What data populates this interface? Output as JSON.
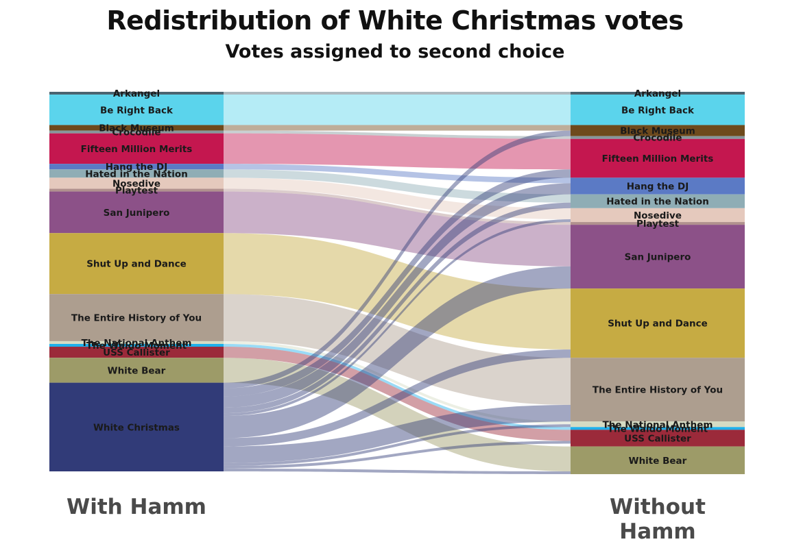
{
  "chart_data": {
    "type": "alluvial",
    "title": "Redistribution of White Christmas votes",
    "subtitle": "Votes assigned to second choice",
    "axes": [
      "With Hamm",
      "Without Hamm"
    ],
    "eliminated": "White Christmas",
    "categories": [
      {
        "name": "Arkangel",
        "color": "#4a6470",
        "with": 1,
        "without": 1
      },
      {
        "name": "Be Right Back",
        "color": "#5bd4ec",
        "with": 11,
        "without": 11
      },
      {
        "name": "Black Museum",
        "color": "#6e4a1c",
        "with": 2,
        "without": 4
      },
      {
        "name": "Crocodile",
        "color": "#86979b",
        "with": 1,
        "without": 1
      },
      {
        "name": "Fifteen Million Merits",
        "color": "#c4174f",
        "with": 11,
        "without": 14
      },
      {
        "name": "Hang the DJ",
        "color": "#5b7ac5",
        "with": 2,
        "without": 6
      },
      {
        "name": "Hated in the Nation",
        "color": "#8fadb5",
        "with": 3,
        "without": 5
      },
      {
        "name": "Nosedive",
        "color": "#e5c9bd",
        "with": 4,
        "without": 5
      },
      {
        "name": "Playtest",
        "color": "#b1918e",
        "with": 1,
        "without": 1
      },
      {
        "name": "San Junipero",
        "color": "#8c5188",
        "with": 15,
        "without": 23
      },
      {
        "name": "Shut Up and Dance",
        "color": "#c6ab43",
        "with": 22,
        "without": 25
      },
      {
        "name": "The Entire History of You",
        "color": "#ad9e8f",
        "with": 17,
        "without": 23
      },
      {
        "name": "The National Anthem",
        "color": "#d5dbc3",
        "with": 1,
        "without": 2
      },
      {
        "name": "The Waldo Moment",
        "color": "#1eb0ea",
        "with": 1,
        "without": 1
      },
      {
        "name": "USS Callister",
        "color": "#9b2a3a",
        "with": 4,
        "without": 6
      },
      {
        "name": "White Bear",
        "color": "#9d9b68",
        "with": 9,
        "without": 10
      },
      {
        "name": "White Christmas",
        "color": "#313b78",
        "with": 32,
        "without": 0
      }
    ],
    "redistribution": [
      {
        "to": "Black Museum",
        "votes": 2
      },
      {
        "to": "Fifteen Million Merits",
        "votes": 3
      },
      {
        "to": "Hang the DJ",
        "votes": 4
      },
      {
        "to": "Hated in the Nation",
        "votes": 2
      },
      {
        "to": "Nosedive",
        "votes": 1
      },
      {
        "to": "San Junipero",
        "votes": 8
      },
      {
        "to": "Shut Up and Dance",
        "votes": 3
      },
      {
        "to": "The Entire History of You",
        "votes": 6
      },
      {
        "to": "The National Anthem",
        "votes": 1
      },
      {
        "to": "USS Callister",
        "votes": 1
      },
      {
        "to": "White Bear",
        "votes": 1
      }
    ]
  }
}
